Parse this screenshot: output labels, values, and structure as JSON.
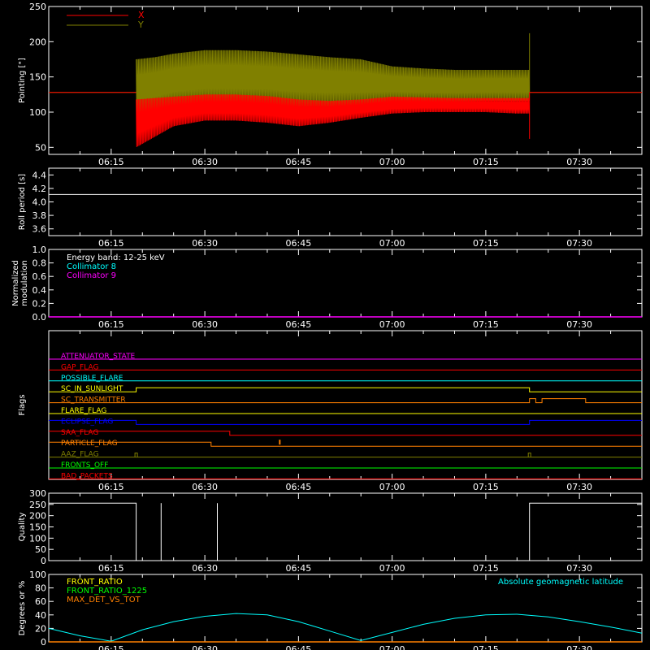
{
  "time_axis": {
    "start": "06:05",
    "end": "07:40",
    "ticks": [
      "06:15",
      "06:30",
      "06:45",
      "07:00",
      "07:15",
      "07:30"
    ]
  },
  "chart_data": [
    {
      "type": "line",
      "ylabel": "Pointing [\"]",
      "ylim": [
        40,
        250
      ],
      "yticks": [
        50,
        100,
        150,
        200,
        250
      ],
      "legend": [
        {
          "name": "X",
          "color": "#ff0000"
        },
        {
          "name": "Y",
          "color": "#808000"
        }
      ],
      "series": [
        {
          "name": "X",
          "color": "#ff0000",
          "baseline": 128,
          "band_x": [
            "06:19",
            "06:22",
            "06:25",
            "06:30",
            "06:35",
            "06:40",
            "06:45",
            "06:50",
            "06:55",
            "07:00",
            "07:05",
            "07:10",
            "07:15",
            "07:20",
            "07:22"
          ],
          "low": [
            50,
            65,
            80,
            88,
            88,
            85,
            80,
            85,
            92,
            98,
            100,
            100,
            100,
            98,
            98
          ],
          "high": [
            118,
            120,
            122,
            125,
            125,
            123,
            118,
            116,
            118,
            122,
            121,
            120,
            120,
            120,
            120
          ],
          "spike_time": "07:22",
          "spike_range": [
            62,
            128
          ]
        },
        {
          "name": "Y",
          "color": "#808000",
          "baseline": 128,
          "band_x": [
            "06:19",
            "06:22",
            "06:25",
            "06:30",
            "06:35",
            "06:40",
            "06:45",
            "06:50",
            "06:55",
            "07:00",
            "07:05",
            "07:10",
            "07:15",
            "07:20",
            "07:22"
          ],
          "low": [
            95,
            100,
            108,
            112,
            112,
            112,
            108,
            108,
            110,
            115,
            115,
            115,
            116,
            116,
            116
          ],
          "high": [
            175,
            178,
            183,
            188,
            188,
            186,
            182,
            178,
            175,
            165,
            162,
            160,
            160,
            160,
            160
          ],
          "spike_time": "07:22",
          "spike_range": [
            128,
            212
          ]
        }
      ]
    },
    {
      "type": "line",
      "ylabel": "Roll period [s]",
      "ylim": [
        3.5,
        4.5
      ],
      "yticks": [
        "3.6",
        "3.8",
        "4.0",
        "4.2",
        "4.4"
      ],
      "series": [
        {
          "color": "#ffffff",
          "x": [
            "06:05",
            "07:40"
          ],
          "y": [
            4.11,
            4.11
          ]
        }
      ]
    },
    {
      "type": "line",
      "ylabel_lines": [
        "Normalized",
        "modulation"
      ],
      "ylim": [
        0,
        1
      ],
      "yticks": [
        "0.0",
        "0.2",
        "0.4",
        "0.6",
        "0.8",
        "1.0"
      ],
      "legend": [
        {
          "name": "Energy band: 12-25 keV",
          "color": "#ffffff"
        },
        {
          "name": "Collimator 8",
          "color": "#00ffff"
        },
        {
          "name": "Collimator 9",
          "color": "#ff00ff"
        }
      ],
      "series": [
        {
          "name": "Collimator 9",
          "color": "#ff00ff",
          "x": [
            "06:05",
            "07:40"
          ],
          "y": [
            0,
            0
          ]
        }
      ]
    },
    {
      "type": "line",
      "ylabel": "Flags",
      "flags": [
        {
          "name": "ATTENUATOR_STATE",
          "color": "#ff00ff",
          "segments": [
            [
              "06:05",
              "07:40",
              0
            ]
          ]
        },
        {
          "name": "GAP_FLAG",
          "color": "#ff0000",
          "segments": [
            [
              "06:05",
              "07:40",
              0
            ]
          ]
        },
        {
          "name": "POSSIBLE_FLARE",
          "color": "#00ffff",
          "segments": [
            [
              "06:05",
              "07:40",
              0
            ]
          ]
        },
        {
          "name": "SC_IN_SUNLIGHT",
          "color": "#ffff00",
          "segments": [
            [
              "06:05",
              "06:19",
              0
            ],
            [
              "06:19",
              "07:22",
              1
            ],
            [
              "07:22",
              "07:40",
              0
            ]
          ]
        },
        {
          "name": "SC_TRANSMITTER",
          "color": "#ff8000",
          "segments": [
            [
              "06:05",
              "07:22",
              0
            ],
            [
              "07:22",
              "07:23",
              1
            ],
            [
              "07:23",
              "07:24",
              0
            ],
            [
              "07:24",
              "07:31",
              1
            ],
            [
              "07:31",
              "07:40",
              0
            ]
          ]
        },
        {
          "name": "FLARE_FLAG",
          "color": "#ffff00",
          "segments": [
            [
              "06:05",
              "07:40",
              0
            ]
          ]
        },
        {
          "name": "ECLIPSE_FLAG",
          "color": "#0000ff",
          "segments": [
            [
              "06:05",
              "06:19",
              1
            ],
            [
              "06:19",
              "07:22",
              0
            ],
            [
              "07:22",
              "07:40",
              1
            ]
          ]
        },
        {
          "name": "SAA_FLAG",
          "color": "#ff0000",
          "segments": [
            [
              "06:05",
              "06:34",
              1
            ],
            [
              "06:34",
              "07:40",
              0
            ]
          ]
        },
        {
          "name": "PARTICLE_FLAG",
          "color": "#ff8000",
          "segments": [
            [
              "06:05",
              "06:31",
              1
            ],
            [
              "06:31",
              "07:40",
              0
            ]
          ],
          "spikes": [
            "06:42"
          ]
        },
        {
          "name": "AAZ_FLAG",
          "color": "#808000",
          "segments": [
            [
              "06:05",
              "07:40",
              0
            ]
          ],
          "pulses": [
            "06:19",
            "07:22"
          ]
        },
        {
          "name": "FRONTS_OFF",
          "color": "#00ff00",
          "segments": [
            [
              "06:05",
              "07:40",
              0
            ]
          ]
        },
        {
          "name": "BAD_PACKETS",
          "color": "#ff0000",
          "segments": [
            [
              "06:05",
              "07:40",
              0
            ]
          ]
        }
      ]
    },
    {
      "type": "line",
      "ylabel": "Quality",
      "ylim": [
        0,
        300
      ],
      "yticks": [
        "0",
        "50",
        "100",
        "150",
        "200",
        "250",
        "300"
      ],
      "series": [
        {
          "color": "#ffffff",
          "high_value": 256,
          "high_segments": [
            [
              "06:05",
              "06:19"
            ],
            [
              "07:22",
              "07:40"
            ]
          ],
          "spikes": [
            "06:23",
            "06:32"
          ]
        }
      ]
    },
    {
      "type": "line",
      "ylabel": "Degrees or %",
      "ylim": [
        0,
        100
      ],
      "yticks": [
        "0",
        "20",
        "40",
        "60",
        "80",
        "100"
      ],
      "legend": [
        {
          "name": "FRONT_RATIO",
          "color": "#ffff00"
        },
        {
          "name": "FRONT_RATIO_1225",
          "color": "#00ff00"
        },
        {
          "name": "MAX_DET_VS_TOT",
          "color": "#ff8000"
        }
      ],
      "legend_right": {
        "name": "Absolute geomagnetic latitude",
        "color": "#00ffff"
      },
      "series": [
        {
          "name": "Absolute geomagnetic latitude",
          "color": "#00ffff",
          "x": [
            "06:05",
            "06:10",
            "06:15",
            "06:20",
            "06:25",
            "06:30",
            "06:35",
            "06:40",
            "06:45",
            "06:50",
            "06:55",
            "07:00",
            "07:05",
            "07:10",
            "07:15",
            "07:20",
            "07:25",
            "07:30",
            "07:35",
            "07:40"
          ],
          "y": [
            20,
            9,
            1,
            18,
            30,
            38,
            42,
            40,
            30,
            16,
            2,
            14,
            26,
            35,
            40,
            41,
            37,
            30,
            22,
            13
          ]
        },
        {
          "name": "MAX_DET_VS_TOT",
          "color": "#ff8000",
          "x": [
            "06:05",
            "07:40"
          ],
          "y": [
            0,
            0
          ]
        }
      ]
    }
  ]
}
